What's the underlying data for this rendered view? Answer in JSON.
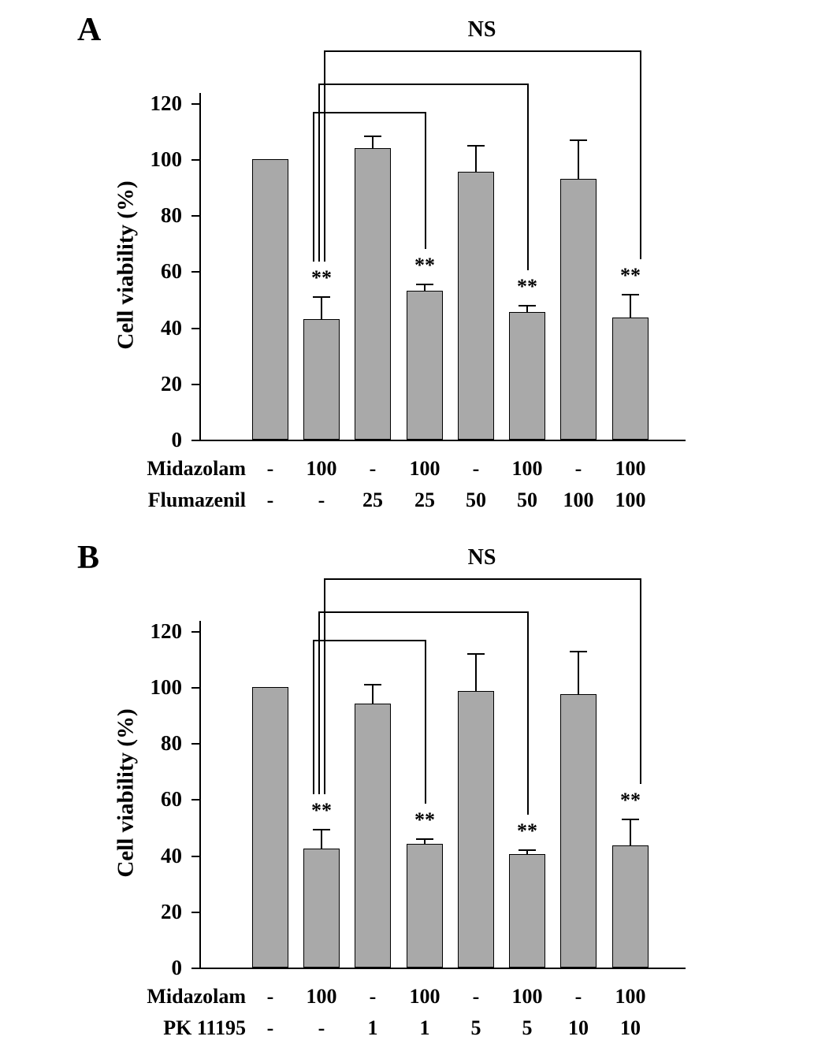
{
  "figure": {
    "background_color": "#ffffff",
    "bar_fill_color": "#a9a9a9",
    "bar_border_color": "#000000"
  },
  "panels": [
    {
      "panel_label": "A",
      "ns_label": "NS",
      "chart_data": {
        "type": "bar",
        "title": "",
        "ylabel": "Cell viability (%)",
        "xlabel": "",
        "ylim": [
          0,
          120
        ],
        "yticks": [
          0,
          20,
          40,
          60,
          80,
          100,
          120
        ],
        "grid": false,
        "legend": "none",
        "values": [
          100,
          43,
          104,
          53,
          95.5,
          45.5,
          93,
          43.5
        ],
        "errors": [
          0,
          8,
          4.5,
          2.5,
          9.5,
          2.5,
          14,
          8.5
        ],
        "significance": [
          "",
          "**",
          "",
          "**",
          "",
          "**",
          "",
          "**"
        ],
        "x_rows": [
          {
            "label": "Midazolam",
            "values": [
              "-",
              "100",
              "-",
              "100",
              "-",
              "100",
              "-",
              "100"
            ]
          },
          {
            "label": "Flumazenil",
            "values": [
              "-",
              "-",
              "25",
              "25",
              "50",
              "50",
              "100",
              "100"
            ]
          }
        ],
        "ns_comparisons": {
          "from_bar": 2,
          "to_bars": [
            4,
            6,
            8
          ],
          "label": "NS"
        }
      }
    },
    {
      "panel_label": "B",
      "ns_label": "NS",
      "chart_data": {
        "type": "bar",
        "title": "",
        "ylabel": "Cell viability (%)",
        "xlabel": "",
        "ylim": [
          0,
          120
        ],
        "yticks": [
          0,
          20,
          40,
          60,
          80,
          100,
          120
        ],
        "grid": false,
        "legend": "none",
        "values": [
          100,
          42.5,
          94,
          44,
          98.5,
          40.5,
          97.5,
          43.5
        ],
        "errors": [
          0,
          7,
          7,
          2,
          13.5,
          1.5,
          15.5,
          9.5
        ],
        "significance": [
          "",
          "**",
          "",
          "**",
          "",
          "**",
          "",
          "**"
        ],
        "x_rows": [
          {
            "label": "Midazolam",
            "values": [
              "-",
              "100",
              "-",
              "100",
              "-",
              "100",
              "-",
              "100"
            ]
          },
          {
            "label": "PK 11195",
            "values": [
              "-",
              "-",
              "1",
              "1",
              "5",
              "5",
              "10",
              "10"
            ]
          }
        ],
        "ns_comparisons": {
          "from_bar": 2,
          "to_bars": [
            4,
            6,
            8
          ],
          "label": "NS"
        }
      }
    }
  ]
}
